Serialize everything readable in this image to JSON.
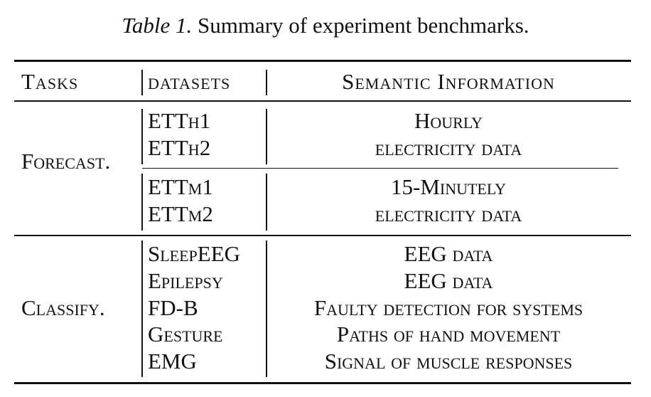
{
  "caption": {
    "label": "Table 1.",
    "text": "Summary of experiment benchmarks."
  },
  "header": {
    "tasks": "Tasks",
    "datasets": "datasets",
    "semantic": "Semantic Information"
  },
  "forecast": {
    "task": "Forecast.",
    "groups": [
      {
        "datasets": [
          "ETTh1",
          "ETTh2"
        ],
        "info": [
          "Hourly",
          "electricity data"
        ]
      },
      {
        "datasets": [
          "ETTm1",
          "ETTm2"
        ],
        "info": [
          "15-Minutely",
          "electricity data"
        ]
      }
    ]
  },
  "classify": {
    "task": "Classify.",
    "rows": [
      {
        "dataset": "SleepEEG",
        "info": "EEG data"
      },
      {
        "dataset": "Epilepsy",
        "info": "EEG data"
      },
      {
        "dataset": "FD-B",
        "info": "Faulty detection for systems"
      },
      {
        "dataset": "Gesture",
        "info": "Paths of hand movement"
      },
      {
        "dataset": "EMG",
        "info": "Signal of muscle responses"
      }
    ]
  }
}
